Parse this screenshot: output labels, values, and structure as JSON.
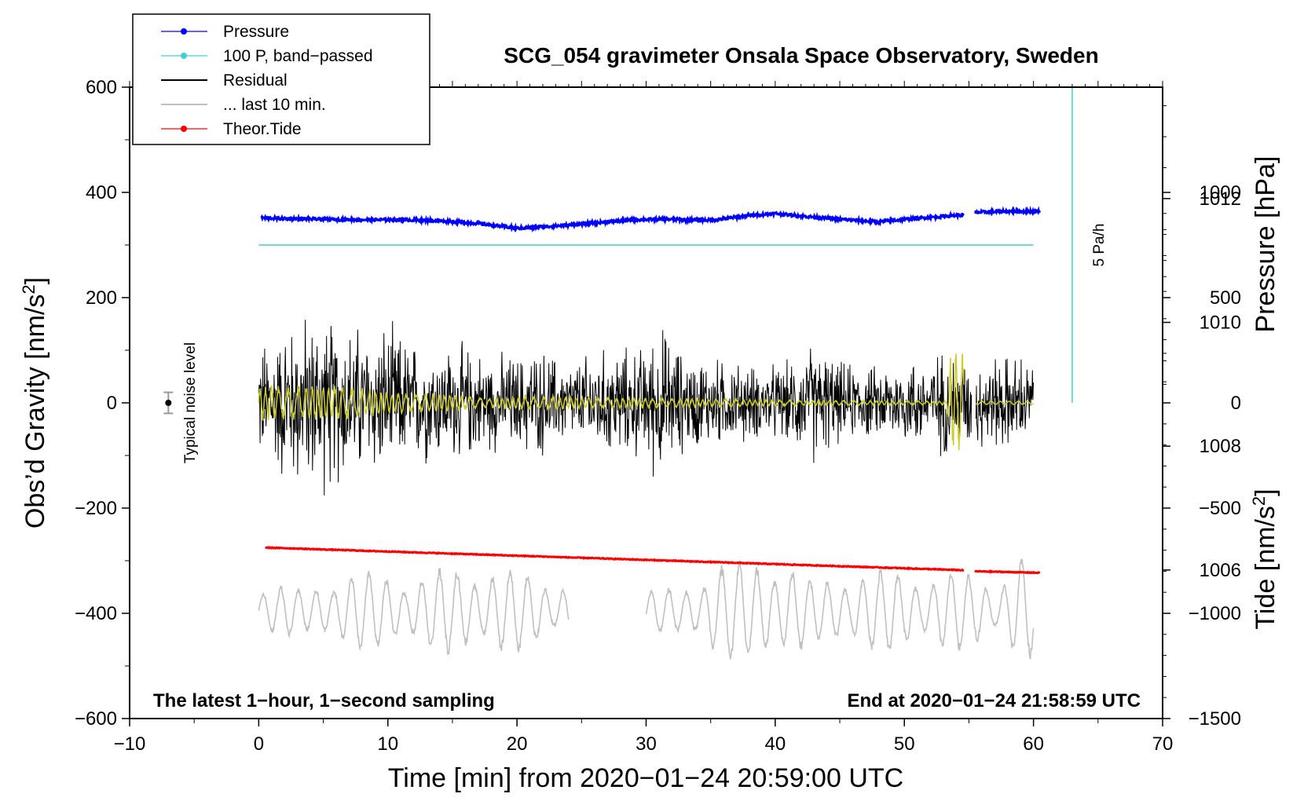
{
  "chart_data": {
    "type": "line",
    "title": "SCG_054 gravimeter Onsala Space Observatory, Sweden",
    "xlabel": "Time [min] from 2020−01−24 20:59:00 UTC",
    "ylabel_left_main": "Obs’d Gravity [nm/s",
    "ylabel_left_sup": "2",
    "ylabel_left_end": "]",
    "ylabel_right_top": "Pressure [hPa]",
    "ylabel_right_bottom_main": "Tide [nm/s",
    "ylabel_right_bottom_sup": "2",
    "ylabel_right_bottom_end": "]",
    "xlim": [
      -10,
      70
    ],
    "ylim": [
      -600,
      600
    ],
    "pressure_axis_range": [
      1003.6,
      1013.8
    ],
    "tide_axis_range": [
      -1500,
      1500
    ],
    "x_ticks": [
      {
        "v": -10,
        "label": "−10"
      },
      {
        "v": 0,
        "label": "0"
      },
      {
        "v": 10,
        "label": "10"
      },
      {
        "v": 20,
        "label": "20"
      },
      {
        "v": 30,
        "label": "30"
      },
      {
        "v": 40,
        "label": "40"
      },
      {
        "v": 50,
        "label": "50"
      },
      {
        "v": 60,
        "label": "60"
      },
      {
        "v": 70,
        "label": "70"
      }
    ],
    "y_ticks": [
      {
        "v": 600,
        "label": "600"
      },
      {
        "v": 400,
        "label": "400"
      },
      {
        "v": 200,
        "label": "200"
      },
      {
        "v": 0,
        "label": "0"
      },
      {
        "v": -200,
        "label": "−200"
      },
      {
        "v": -400,
        "label": "−400"
      },
      {
        "v": -600,
        "label": "−600"
      }
    ],
    "pressure_ticks": [
      {
        "v": 1012,
        "label": "1012"
      },
      {
        "v": 1010,
        "label": "1010"
      },
      {
        "v": 1008,
        "label": "1008"
      },
      {
        "v": 1006,
        "label": "1006"
      }
    ],
    "tide_ticks": [
      {
        "v": 1000,
        "label": "1000"
      },
      {
        "v": 500,
        "label": "500"
      },
      {
        "v": 0,
        "label": "0"
      },
      {
        "v": -500,
        "label": "−500"
      },
      {
        "v": -1000,
        "label": "−1000"
      },
      {
        "v": -1500,
        "label": "−1500"
      }
    ],
    "legend": [
      {
        "label": "Pressure",
        "color": "#0000ff",
        "marker": true
      },
      {
        "label": "100 P, band−passed",
        "color": "#40d0d0",
        "marker": true
      },
      {
        "label": "Residual",
        "color": "#000000",
        "marker": false
      },
      {
        "label": "... last 10 min.",
        "color": "#c0c0c0",
        "marker": false
      },
      {
        "label": "Theor.Tide",
        "color": "#ff0000",
        "marker": true
      }
    ],
    "series": [
      {
        "name": "Pressure",
        "color": "#0000ff",
        "axis": "gravity",
        "gap": [
          54.6,
          55.4
        ],
        "points": [
          [
            0,
            352
          ],
          [
            2,
            350
          ],
          [
            5,
            349
          ],
          [
            8,
            348
          ],
          [
            11,
            348
          ],
          [
            14,
            346
          ],
          [
            17,
            341
          ],
          [
            20,
            332
          ],
          [
            23,
            336
          ],
          [
            26,
            342
          ],
          [
            29,
            348
          ],
          [
            32,
            349
          ],
          [
            35,
            347
          ],
          [
            38,
            356
          ],
          [
            40,
            360
          ],
          [
            42,
            355
          ],
          [
            45,
            349
          ],
          [
            48,
            344
          ],
          [
            51,
            351
          ],
          [
            54.5,
            357
          ],
          [
            55.5,
            362
          ],
          [
            58,
            364
          ],
          [
            60.5,
            364
          ]
        ]
      },
      {
        "name": "100 P, band−passed",
        "color": "#40d0d0",
        "axis": "gravity",
        "level": 300,
        "xmin": 0,
        "xmax": 60
      },
      {
        "name": "Residual",
        "color": "#000000",
        "axis": "gravity",
        "xmin": 0,
        "xmax": 60,
        "gap": [
          55.2,
          55.5
        ],
        "envelope": [
          [
            0,
            130
          ],
          [
            2,
            180
          ],
          [
            4,
            200
          ],
          [
            6,
            190
          ],
          [
            8,
            170
          ],
          [
            10,
            170
          ],
          [
            12,
            140
          ],
          [
            14,
            130
          ],
          [
            16,
            130
          ],
          [
            18,
            110
          ],
          [
            20,
            110
          ],
          [
            22,
            120
          ],
          [
            24,
            90
          ],
          [
            26,
            120
          ],
          [
            28,
            120
          ],
          [
            30,
            130
          ],
          [
            31,
            180
          ],
          [
            33,
            110
          ],
          [
            36,
            100
          ],
          [
            39,
            80
          ],
          [
            41,
            90
          ],
          [
            43,
            140
          ],
          [
            45,
            90
          ],
          [
            48,
            80
          ],
          [
            50,
            100
          ],
          [
            52,
            100
          ],
          [
            53,
            120
          ],
          [
            54,
            100
          ],
          [
            56,
            100
          ],
          [
            58,
            110
          ],
          [
            60,
            100
          ]
        ]
      },
      {
        "name": "Band-passed residual",
        "color": "#cccc22",
        "axis": "gravity",
        "xmin": 0,
        "xmax": 54.6,
        "envelope": [
          [
            0,
            35
          ],
          [
            3,
            35
          ],
          [
            7,
            33
          ],
          [
            10,
            22
          ],
          [
            14,
            18
          ],
          [
            18,
            10
          ],
          [
            22,
            14
          ],
          [
            25,
            12
          ],
          [
            30,
            10
          ],
          [
            35,
            8
          ],
          [
            40,
            6
          ],
          [
            45,
            5
          ],
          [
            50,
            4
          ],
          [
            53.3,
            4
          ],
          [
            53.6,
            110
          ],
          [
            54.5,
            100
          ]
        ]
      },
      {
        "name": "Theor.Tide",
        "color": "#ff0000",
        "axis": "gravity",
        "gap": [
          54.6,
          55.4
        ],
        "points": [
          [
            0.5,
            -275
          ],
          [
            54.5,
            -318
          ],
          [
            55.4,
            -320
          ],
          [
            60.5,
            -323
          ]
        ]
      },
      {
        "name": "... last 10 min.",
        "color": "#c0c0c0",
        "axis": "gravity",
        "baseline": -395,
        "segments": [
          [
            0,
            24
          ],
          [
            30,
            60
          ]
        ],
        "envelope": [
          [
            0,
            60
          ],
          [
            4,
            40
          ],
          [
            6,
            80
          ],
          [
            10,
            70
          ],
          [
            14,
            80
          ],
          [
            18,
            90
          ],
          [
            22,
            65
          ],
          [
            24,
            60
          ],
          [
            30,
            40
          ],
          [
            33,
            45
          ],
          [
            35,
            100
          ],
          [
            38,
            90
          ],
          [
            40,
            120
          ],
          [
            43,
            55
          ],
          [
            46,
            85
          ],
          [
            50,
            75
          ],
          [
            54,
            80
          ],
          [
            57,
            60
          ],
          [
            59,
            110
          ],
          [
            60,
            80
          ]
        ]
      }
    ],
    "noise_marker": {
      "x": -7,
      "y": 0,
      "err": 20,
      "label": "Typical noise level"
    },
    "scale_bar": {
      "x": 63,
      "y_top": 600,
      "y_bottom": 0,
      "label": "5 Pa/h"
    },
    "annotations": {
      "left": "The latest 1−hour, 1−second sampling",
      "right": "End at 2020−01−24 21:58:59 UTC"
    }
  },
  "colors": {
    "pressure": "#0000ff",
    "band": "#40d0d0",
    "residual": "#000000",
    "last10": "#c0c0c0",
    "tide": "#ff0000",
    "yellow": "#cccc22"
  }
}
